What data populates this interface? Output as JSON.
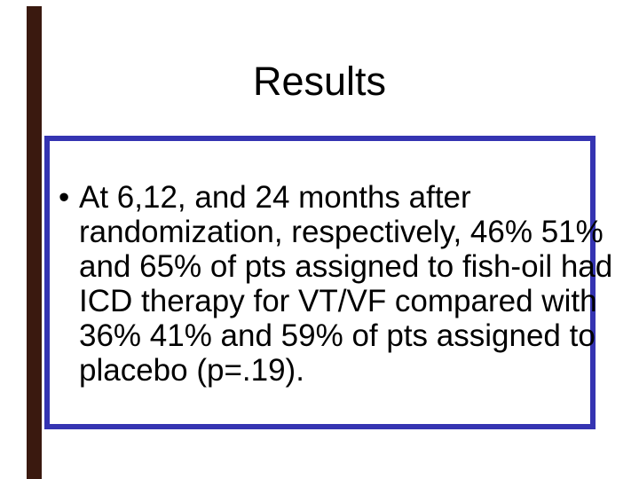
{
  "slide": {
    "title": "Results",
    "bullet": {
      "marker": "•",
      "lines": [
        "At 6,12, and 24 months after",
        "randomization, respectively, 46% 51%",
        "and 65% of pts assigned to fish-oil had",
        "ICD therapy for VT/VF compared with",
        "36% 41% and 59% of pts assigned to",
        "placebo (p=.19)."
      ]
    },
    "colors": {
      "background": "#ffffff",
      "box_border": "#3534b2",
      "left_stripe": "#3a190f",
      "text": "#000000"
    }
  }
}
